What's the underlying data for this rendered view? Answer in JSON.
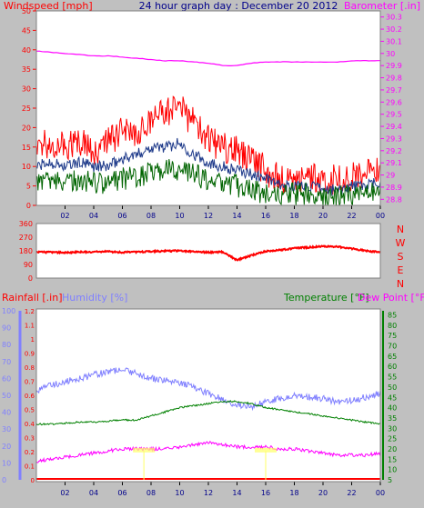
{
  "header": {
    "left_label": "Windspeed [mph]",
    "center_title": "24 hour graph day : December 20 2012",
    "right_label": "Barometer [.in]"
  },
  "colors": {
    "background": "#c0c0c0",
    "plot_bg": "#ffffff",
    "gust": "#ff0000",
    "average": "#006400",
    "wind_mid": "#1e3a8a",
    "barometer": "#ff00ff",
    "direction": "#ff0000",
    "humidity": "#8080ff",
    "temperature": "#008000",
    "dew_point": "#ff00ff",
    "rainfall": "#ff0000",
    "rain_marker": "#ffff66"
  },
  "chart_data": [
    {
      "id": "wind",
      "type": "line",
      "x_ticks": [
        "02",
        "04",
        "06",
        "08",
        "10",
        "12",
        "14",
        "16",
        "18",
        "20",
        "22",
        "00"
      ],
      "x_hours": [
        0,
        1,
        2,
        3,
        4,
        5,
        6,
        7,
        8,
        9,
        10,
        11,
        12,
        13,
        14,
        15,
        16,
        17,
        18,
        19,
        20,
        21,
        22,
        23,
        24
      ],
      "y_ticks": [
        "0",
        "5",
        "10",
        "15",
        "20",
        "25",
        "30",
        "35",
        "40",
        "45",
        "50"
      ],
      "ylim": [
        0,
        50
      ],
      "y2_ticks": [
        "28.8",
        "28.9",
        "29",
        "29.1",
        "29.2",
        "29.3",
        "29.4",
        "29.5",
        "29.6",
        "29.7",
        "29.8",
        "29.9",
        "30",
        "30.1",
        "30.2",
        "30.3"
      ],
      "y2lim": [
        28.75,
        30.35
      ],
      "series": [
        {
          "name": "Windspeed [mph]",
          "kind": "gust",
          "values": [
            15,
            16,
            15,
            17,
            14,
            16,
            19,
            18,
            22,
            24,
            25,
            21,
            17,
            15,
            14,
            12,
            9,
            7,
            7,
            8,
            6,
            7,
            7,
            8,
            9
          ]
        },
        {
          "name": "",
          "kind": "mid",
          "values": [
            10,
            11,
            10,
            11,
            10,
            10,
            12,
            13,
            15,
            15,
            16,
            13,
            11,
            10,
            9,
            8,
            7,
            5,
            5,
            5,
            4,
            4,
            5,
            5,
            6
          ]
        },
        {
          "name": "",
          "kind": "avg",
          "values": [
            6,
            7,
            6,
            6,
            6,
            5,
            7,
            7,
            9,
            9,
            9,
            8,
            6,
            6,
            5,
            4,
            3,
            3,
            3,
            3,
            2,
            2,
            3,
            3,
            3
          ]
        },
        {
          "name": "Barometer [.in]",
          "kind": "baro",
          "values": [
            30.02,
            30.01,
            30.0,
            29.99,
            29.98,
            29.98,
            29.97,
            29.96,
            29.95,
            29.94,
            29.94,
            29.93,
            29.92,
            29.9,
            29.9,
            29.92,
            29.93,
            29.93,
            29.93,
            29.93,
            29.93,
            29.93,
            29.94,
            29.94,
            29.94
          ]
        }
      ]
    },
    {
      "id": "direction",
      "type": "line",
      "x_ticks": [
        "02",
        "04",
        "06",
        "08",
        "10",
        "12",
        "14",
        "16",
        "18",
        "20",
        "22",
        "00"
      ],
      "x_hours": [
        0,
        1,
        2,
        3,
        4,
        5,
        6,
        7,
        8,
        9,
        10,
        11,
        12,
        13,
        14,
        15,
        16,
        17,
        18,
        19,
        20,
        21,
        22,
        23,
        24
      ],
      "y_ticks": [
        "0",
        "90",
        "180",
        "270",
        "360"
      ],
      "ylim": [
        0,
        360
      ],
      "compass_labels": [
        "N",
        "W",
        "S",
        "E",
        "N"
      ],
      "series": [
        {
          "name": "",
          "kind": "dir",
          "values": [
            172,
            170,
            168,
            172,
            173,
            175,
            170,
            172,
            176,
            178,
            180,
            175,
            170,
            172,
            118,
            150,
            178,
            185,
            198,
            203,
            210,
            206,
            195,
            180,
            170
          ]
        }
      ]
    },
    {
      "id": "thermo",
      "type": "line",
      "labels": {
        "rainfall": "Rainfall [.in]",
        "humidity": "Humidity [%]",
        "temperature": "Temperature [°F]",
        "dew_point": "Dew Point [°F]"
      },
      "x_ticks": [
        "02",
        "04",
        "06",
        "08",
        "10",
        "12",
        "14",
        "16",
        "18",
        "20",
        "22",
        "00"
      ],
      "x_hours": [
        0,
        1,
        2,
        3,
        4,
        5,
        6,
        7,
        8,
        9,
        10,
        11,
        12,
        13,
        14,
        15,
        16,
        17,
        18,
        19,
        20,
        21,
        22,
        23,
        24
      ],
      "humidity_ticks": [
        "0",
        "10",
        "20",
        "30",
        "40",
        "50",
        "60",
        "70",
        "80",
        "90",
        "100"
      ],
      "rain_ticks": [
        "0",
        "0.1",
        "0.2",
        "0.3",
        "0.4",
        "0.5",
        "0.6",
        "0.7",
        "0.8",
        "0.9",
        "1",
        "1.1",
        "1.2"
      ],
      "temp_ticks": [
        "5",
        "10",
        "15",
        "20",
        "25",
        "30",
        "35",
        "40",
        "45",
        "50",
        "55",
        "60",
        "65",
        "70",
        "75",
        "80",
        "85"
      ],
      "humidity_lim": [
        0,
        100
      ],
      "temp_lim": [
        5,
        87
      ],
      "series": [
        {
          "name": "Humidity [%]",
          "kind": "hum",
          "values": [
            53,
            56,
            58,
            60,
            62,
            64,
            65,
            63,
            60,
            59,
            57,
            55,
            51,
            48,
            44,
            43,
            46,
            48,
            50,
            49,
            48,
            46,
            47,
            49,
            51
          ]
        },
        {
          "name": "Temperature [°F]",
          "kind": "temp",
          "values": [
            32,
            32,
            32.5,
            33,
            33,
            33.5,
            34,
            34,
            36,
            38,
            40,
            41,
            42,
            43,
            43,
            42,
            40,
            39,
            38,
            37,
            36,
            35,
            34,
            33,
            32
          ]
        },
        {
          "name": "Dew Point [°F]",
          "kind": "dew",
          "values": [
            14,
            15,
            16,
            17,
            18,
            19,
            20,
            20,
            20,
            20,
            21,
            22,
            23,
            22,
            21,
            21,
            21,
            20,
            20,
            19,
            18,
            17,
            17,
            17,
            18
          ]
        },
        {
          "name": "Rainfall [.in]",
          "kind": "rain",
          "values": [
            0,
            0,
            0,
            0,
            0,
            0,
            0,
            0,
            0,
            0,
            0,
            0,
            0,
            0,
            0,
            0,
            0,
            0,
            0,
            0,
            0,
            0,
            0,
            0,
            0
          ]
        }
      ],
      "rain_marks": [
        7.5,
        16.0
      ]
    }
  ]
}
